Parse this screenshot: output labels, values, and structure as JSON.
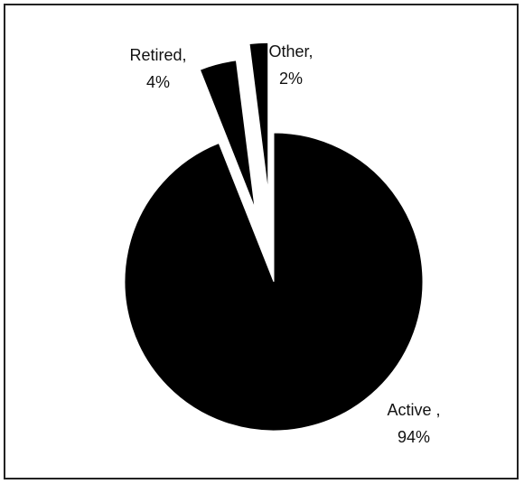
{
  "chart_data": {
    "type": "pie",
    "categories": [
      "Active ,",
      "Retired,",
      "Other,"
    ],
    "values": [
      94,
      4,
      2
    ],
    "value_labels": [
      "94%",
      "4%",
      "2%"
    ],
    "color": "#000000"
  }
}
